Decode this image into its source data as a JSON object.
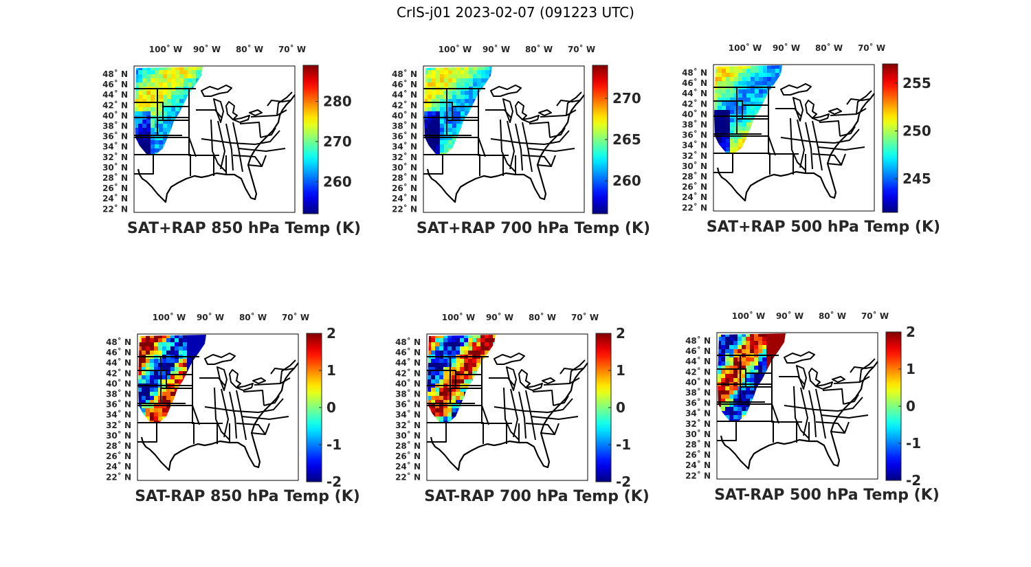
{
  "figure": {
    "title": "CrIS-j01 2023-02-07 (091223 UTC)"
  },
  "map": {
    "lon_labels": [
      "100˚ W",
      "90˚ W",
      "80˚ W",
      "70˚ W"
    ],
    "lat_labels": [
      "48˚ N",
      "46˚ N",
      "44˚ N",
      "42˚ N",
      "40˚ N",
      "38˚ N",
      "36˚ N",
      "34˚ N",
      "32˚ N",
      "30˚ N",
      "28˚ N",
      "26˚ N",
      "24˚ N",
      "22˚ N"
    ]
  },
  "panels": [
    {
      "id": "sat-rap-850-temp",
      "title": "SAT+RAP 850 hPa Temp (K)",
      "field": "temperature",
      "colorbar": {
        "ticks": [
          260,
          270,
          280
        ],
        "range": [
          252,
          289
        ]
      }
    },
    {
      "id": "sat-rap-700-temp",
      "title": "SAT+RAP 700 hPa Temp (K)",
      "field": "temperature",
      "colorbar": {
        "ticks": [
          260,
          265,
          270
        ],
        "range": [
          256,
          274
        ]
      }
    },
    {
      "id": "sat-rap-500-temp",
      "title": "SAT+RAP 500 hPa Temp (K)",
      "field": "temperature",
      "colorbar": {
        "ticks": [
          245,
          250,
          255
        ],
        "range": [
          241.5,
          257
        ]
      }
    },
    {
      "id": "sat-minus-rap-850-temp",
      "title": "SAT-RAP 850 hPa Temp (K)",
      "field": "difference",
      "colorbar": {
        "ticks": [
          -2,
          -1,
          0,
          1,
          2
        ],
        "range": [
          -2,
          2
        ]
      }
    },
    {
      "id": "sat-minus-rap-700-temp",
      "title": "SAT-RAP 700 hPa Temp (K)",
      "field": "difference",
      "colorbar": {
        "ticks": [
          -2,
          -1,
          0,
          1,
          2
        ],
        "range": [
          -2,
          2
        ]
      }
    },
    {
      "id": "sat-minus-rap-500-temp",
      "title": "SAT-RAP 500 hPa Temp (K)",
      "field": "difference",
      "colorbar": {
        "ticks": [
          -2,
          -1,
          0,
          1,
          2
        ],
        "range": [
          -2,
          2
        ]
      }
    }
  ]
}
